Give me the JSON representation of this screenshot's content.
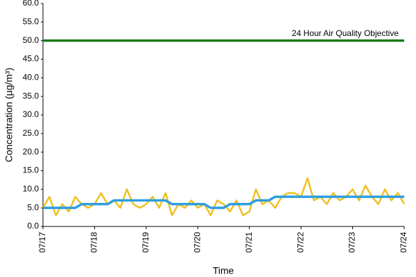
{
  "chart_data": {
    "type": "line",
    "x_label": "Time",
    "y_label": "Concentration (µg/m³)",
    "categories": [
      "07/17",
      null,
      null,
      null,
      null,
      null,
      null,
      null,
      "07/18",
      null,
      null,
      null,
      null,
      null,
      null,
      null,
      "07/19",
      null,
      null,
      null,
      null,
      null,
      null,
      null,
      "07/20",
      null,
      null,
      null,
      null,
      null,
      null,
      null,
      "07/21",
      null,
      null,
      null,
      null,
      null,
      null,
      null,
      "07/22",
      null,
      null,
      null,
      null,
      null,
      null,
      null,
      "07/23",
      null,
      null,
      null,
      null,
      null,
      null,
      null,
      "07/24"
    ],
    "series": [
      {
        "color": "#f0c020",
        "values": [
          5,
          8,
          3,
          6,
          4,
          8,
          6,
          5,
          6,
          9,
          6,
          7,
          5,
          10,
          6,
          5,
          6,
          8,
          5,
          9,
          3,
          6,
          5,
          7,
          5,
          6,
          3,
          7,
          6,
          4,
          7,
          3,
          4,
          10,
          6,
          7,
          5,
          8,
          9,
          9,
          8,
          13,
          7,
          8,
          6,
          9,
          7,
          8,
          10,
          7,
          11,
          8,
          6,
          10,
          7,
          9,
          6
        ]
      },
      {
        "color": "#2e9ee0",
        "values": [
          5,
          5,
          5,
          5,
          5,
          5,
          6,
          6,
          6,
          6,
          6,
          7,
          7,
          7,
          7,
          7,
          7,
          7,
          7,
          7,
          6,
          6,
          6,
          6,
          6,
          6,
          5,
          5,
          5,
          6,
          6,
          6,
          6,
          7,
          7,
          7,
          8,
          8,
          8,
          8,
          8,
          8,
          8,
          8,
          8,
          8,
          8,
          8,
          8,
          8,
          8,
          8,
          8,
          8,
          8,
          8,
          8
        ]
      },
      {
        "name": "24 Hour Air Quality Objective",
        "color": "#1a7a1a",
        "values": [
          50,
          50,
          50,
          50,
          50,
          50,
          50,
          50,
          50,
          50,
          50,
          50,
          50,
          50,
          50,
          50,
          50,
          50,
          50,
          50,
          50,
          50,
          50,
          50,
          50,
          50,
          50,
          50,
          50,
          50,
          50,
          50,
          50,
          50,
          50,
          50,
          50,
          50,
          50,
          50,
          50,
          50,
          50,
          50,
          50,
          50,
          50,
          50,
          50,
          50,
          50,
          50,
          50,
          50,
          50,
          50,
          50
        ]
      }
    ],
    "ylim": [
      0,
      60
    ],
    "yticks": [
      {
        "value": 0,
        "label": "0.0"
      },
      {
        "value": 5,
        "label": "5.0"
      },
      {
        "value": 10,
        "label": "10.0"
      },
      {
        "value": 15,
        "label": "15.0"
      },
      {
        "value": 20,
        "label": "20.0"
      },
      {
        "value": 25,
        "label": "25.0"
      },
      {
        "value": 30,
        "label": "30.0"
      },
      {
        "value": 35,
        "label": "35.0"
      },
      {
        "value": 40,
        "label": "40.0"
      },
      {
        "value": 45,
        "label": "45.0"
      },
      {
        "value": 50,
        "label": "50.0"
      },
      {
        "value": 55,
        "label": "55.0"
      },
      {
        "value": 60,
        "label": "60.0"
      }
    ],
    "grid": false
  }
}
